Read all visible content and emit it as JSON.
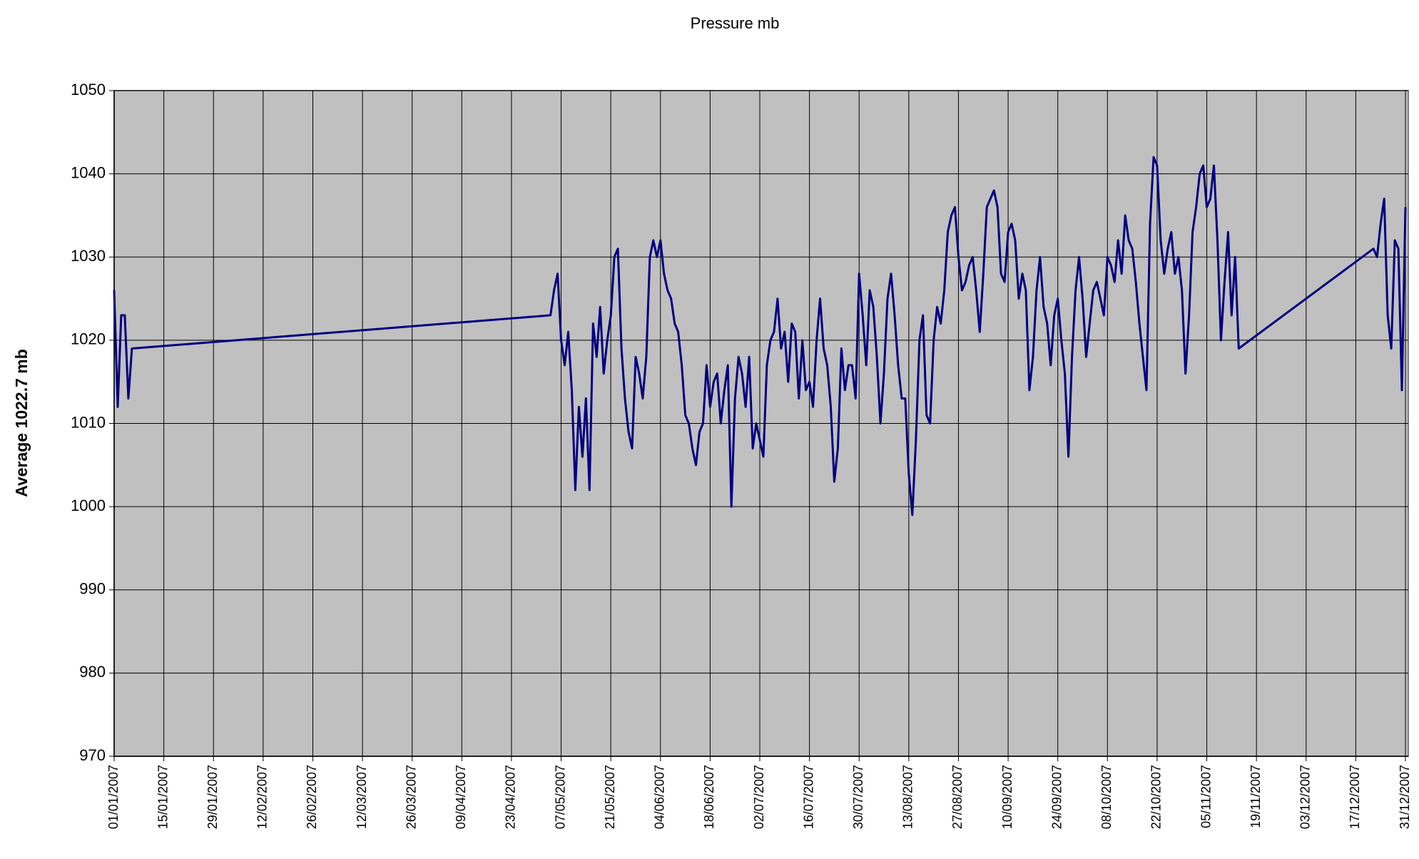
{
  "chart_data": {
    "type": "line",
    "title": "Pressure mb",
    "y_label": "Average 1022.7 mb",
    "color": "#000080",
    "plot_background": "#c0c0c0",
    "grid": true,
    "xlim": [
      "01/01/2007",
      "31/12/2007"
    ],
    "ylim": [
      970,
      1050
    ],
    "yticks": [
      970,
      980,
      990,
      1000,
      1010,
      1020,
      1030,
      1040,
      1050
    ],
    "xticks": [
      "01/01/2007",
      "15/01/2007",
      "29/01/2007",
      "12/02/2007",
      "26/02/2007",
      "12/03/2007",
      "26/03/2007",
      "09/04/2007",
      "23/04/2007",
      "07/05/2007",
      "21/05/2007",
      "04/06/2007",
      "18/06/2007",
      "02/07/2007",
      "16/07/2007",
      "30/07/2007",
      "13/08/2007",
      "27/08/2007",
      "10/09/2007",
      "24/09/2007",
      "08/10/2007",
      "22/10/2007",
      "05/11/2007",
      "19/11/2007",
      "03/12/2007",
      "17/12/2007",
      "31/12/2007"
    ],
    "x": [
      "01/01/2007",
      "02/01/2007",
      "03/01/2007",
      "04/01/2007",
      "05/01/2007",
      "06/01/2007",
      "04/05/2007",
      "05/05/2007",
      "06/05/2007",
      "07/05/2007",
      "08/05/2007",
      "09/05/2007",
      "10/05/2007",
      "11/05/2007",
      "12/05/2007",
      "13/05/2007",
      "14/05/2007",
      "15/05/2007",
      "16/05/2007",
      "17/05/2007",
      "18/05/2007",
      "19/05/2007",
      "20/05/2007",
      "21/05/2007",
      "22/05/2007",
      "23/05/2007",
      "24/05/2007",
      "25/05/2007",
      "26/05/2007",
      "27/05/2007",
      "28/05/2007",
      "29/05/2007",
      "30/05/2007",
      "31/05/2007",
      "01/06/2007",
      "02/06/2007",
      "03/06/2007",
      "04/06/2007",
      "05/06/2007",
      "06/06/2007",
      "07/06/2007",
      "08/06/2007",
      "09/06/2007",
      "10/06/2007",
      "11/06/2007",
      "12/06/2007",
      "13/06/2007",
      "14/06/2007",
      "15/06/2007",
      "16/06/2007",
      "17/06/2007",
      "18/06/2007",
      "19/06/2007",
      "20/06/2007",
      "21/06/2007",
      "22/06/2007",
      "23/06/2007",
      "24/06/2007",
      "25/06/2007",
      "26/06/2007",
      "27/06/2007",
      "28/06/2007",
      "29/06/2007",
      "30/06/2007",
      "01/07/2007",
      "02/07/2007",
      "03/07/2007",
      "04/07/2007",
      "05/07/2007",
      "06/07/2007",
      "07/07/2007",
      "08/07/2007",
      "09/07/2007",
      "10/07/2007",
      "11/07/2007",
      "12/07/2007",
      "13/07/2007",
      "14/07/2007",
      "15/07/2007",
      "16/07/2007",
      "17/07/2007",
      "18/07/2007",
      "19/07/2007",
      "20/07/2007",
      "21/07/2007",
      "22/07/2007",
      "23/07/2007",
      "24/07/2007",
      "25/07/2007",
      "26/07/2007",
      "27/07/2007",
      "28/07/2007",
      "29/07/2007",
      "30/07/2007",
      "31/07/2007",
      "01/08/2007",
      "02/08/2007",
      "03/08/2007",
      "04/08/2007",
      "05/08/2007",
      "06/08/2007",
      "07/08/2007",
      "08/08/2007",
      "09/08/2007",
      "10/08/2007",
      "11/08/2007",
      "12/08/2007",
      "13/08/2007",
      "14/08/2007",
      "15/08/2007",
      "16/08/2007",
      "17/08/2007",
      "18/08/2007",
      "19/08/2007",
      "20/08/2007",
      "21/08/2007",
      "22/08/2007",
      "23/08/2007",
      "24/08/2007",
      "25/08/2007",
      "26/08/2007",
      "27/08/2007",
      "28/08/2007",
      "29/08/2007",
      "30/08/2007",
      "31/08/2007",
      "01/09/2007",
      "02/09/2007",
      "03/09/2007",
      "04/09/2007",
      "05/09/2007",
      "06/09/2007",
      "07/09/2007",
      "08/09/2007",
      "09/09/2007",
      "10/09/2007",
      "11/09/2007",
      "12/09/2007",
      "13/09/2007",
      "14/09/2007",
      "15/09/2007",
      "16/09/2007",
      "17/09/2007",
      "18/09/2007",
      "19/09/2007",
      "20/09/2007",
      "21/09/2007",
      "22/09/2007",
      "23/09/2007",
      "24/09/2007",
      "25/09/2007",
      "26/09/2007",
      "27/09/2007",
      "28/09/2007",
      "29/09/2007",
      "30/09/2007",
      "01/10/2007",
      "02/10/2007",
      "03/10/2007",
      "04/10/2007",
      "05/10/2007",
      "06/10/2007",
      "07/10/2007",
      "08/10/2007",
      "09/10/2007",
      "10/10/2007",
      "11/10/2007",
      "12/10/2007",
      "13/10/2007",
      "14/10/2007",
      "15/10/2007",
      "16/10/2007",
      "17/10/2007",
      "18/10/2007",
      "19/10/2007",
      "20/10/2007",
      "21/10/2007",
      "22/10/2007",
      "23/10/2007",
      "24/10/2007",
      "25/10/2007",
      "26/10/2007",
      "27/10/2007",
      "28/10/2007",
      "29/10/2007",
      "30/10/2007",
      "31/10/2007",
      "01/11/2007",
      "02/11/2007",
      "03/11/2007",
      "04/11/2007",
      "05/11/2007",
      "06/11/2007",
      "07/11/2007",
      "08/11/2007",
      "09/11/2007",
      "10/11/2007",
      "11/11/2007",
      "12/11/2007",
      "13/11/2007",
      "14/11/2007",
      "22/12/2007",
      "23/12/2007",
      "24/12/2007",
      "25/12/2007",
      "26/12/2007",
      "27/12/2007",
      "28/12/2007",
      "29/12/2007",
      "30/12/2007",
      "31/12/2007"
    ],
    "values": [
      1026,
      1012,
      1023,
      1023,
      1013,
      1019,
      1023,
      1026,
      1028,
      1020,
      1017,
      1021,
      1014,
      1002,
      1012,
      1006,
      1013,
      1002,
      1022,
      1018,
      1024,
      1016,
      1020,
      1023,
      1030,
      1031,
      1019,
      1013,
      1009,
      1007,
      1018,
      1016,
      1013,
      1018,
      1030,
      1032,
      1030,
      1032,
      1028,
      1026,
      1025,
      1022,
      1021,
      1017,
      1011,
      1010,
      1007,
      1005,
      1009,
      1010,
      1017,
      1012,
      1015,
      1016,
      1010,
      1014,
      1017,
      1000,
      1013,
      1018,
      1016,
      1012,
      1018,
      1007,
      1010,
      1008,
      1006,
      1017,
      1020,
      1021,
      1025,
      1019,
      1021,
      1015,
      1022,
      1021,
      1013,
      1020,
      1014,
      1015,
      1012,
      1020,
      1025,
      1019,
      1017,
      1012,
      1003,
      1007,
      1019,
      1014,
      1017,
      1017,
      1013,
      1028,
      1023,
      1017,
      1026,
      1024,
      1018,
      1010,
      1016,
      1025,
      1028,
      1023,
      1017,
      1013,
      1013,
      1004,
      999,
      1008,
      1020,
      1023,
      1011,
      1010,
      1020,
      1024,
      1022,
      1026,
      1033,
      1035,
      1036,
      1030,
      1026,
      1027,
      1029,
      1030,
      1026,
      1021,
      1028,
      1036,
      1037,
      1038,
      1036,
      1028,
      1027,
      1033,
      1034,
      1032,
      1025,
      1028,
      1026,
      1014,
      1018,
      1026,
      1030,
      1024,
      1022,
      1017,
      1023,
      1025,
      1020,
      1016,
      1006,
      1018,
      1026,
      1030,
      1025,
      1018,
      1022,
      1026,
      1027,
      1025,
      1023,
      1030,
      1029,
      1027,
      1032,
      1028,
      1035,
      1032,
      1031,
      1027,
      1022,
      1018,
      1014,
      1034,
      1042,
      1041,
      1032,
      1028,
      1031,
      1033,
      1028,
      1030,
      1026,
      1016,
      1023,
      1033,
      1036,
      1040,
      1041,
      1036,
      1037,
      1041,
      1032,
      1020,
      1027,
      1033,
      1023,
      1030,
      1019,
      1031,
      1030,
      1034,
      1037,
      1023,
      1019,
      1032,
      1031,
      1014,
      1036
    ]
  }
}
